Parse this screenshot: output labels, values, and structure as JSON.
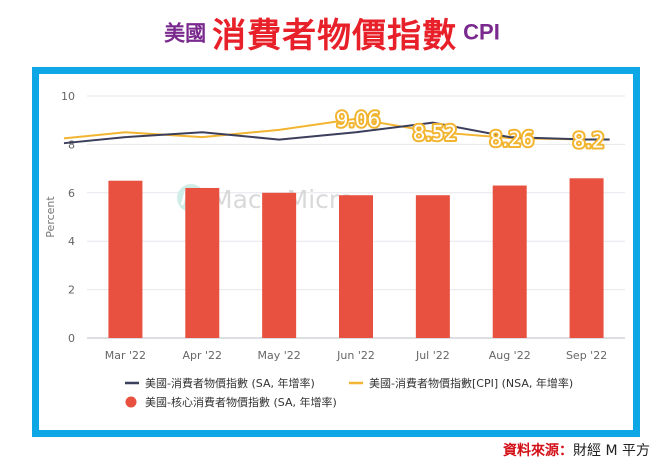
{
  "header": {
    "title_prefix": "美國",
    "title_main": "消費者物價指數",
    "title_suffix": "CPI"
  },
  "watermark": "MacroMicro",
  "source": {
    "label": "資料來源：",
    "value": "財經 M 平方"
  },
  "chart_data": {
    "type": "bar",
    "categories": [
      "Mar '22",
      "Apr '22",
      "May '22",
      "Jun '22",
      "Jul '22",
      "Aug '22",
      "Sep '22"
    ],
    "ylabel": "Percent",
    "ylim": [
      0,
      10
    ],
    "yticks": [
      0,
      2,
      4,
      6,
      8,
      10
    ],
    "grid": true,
    "legend_position": "bottom",
    "series": [
      {
        "name": "美國-消費者物價指數 (SA, 年增率)",
        "type": "line",
        "color": "#3b3f5c",
        "values": [
          8.3,
          8.5,
          8.2,
          8.5,
          8.9,
          8.3,
          8.2
        ]
      },
      {
        "name": "美國-消費者物價指數[CPI] (NSA, 年增率)",
        "type": "line",
        "color": "#f2b531",
        "values": [
          8.5,
          8.3,
          8.6,
          9.06,
          8.52,
          8.26,
          8.2
        ]
      },
      {
        "name": "美國-核心消費者物價指數 (SA, 年增率)",
        "type": "bar",
        "color": "#e8513f",
        "values": [
          6.5,
          6.2,
          6.0,
          5.9,
          5.9,
          6.3,
          6.6
        ]
      }
    ],
    "annotations": [
      {
        "category": "Jun '22",
        "text": "9.06"
      },
      {
        "category": "Jul '22",
        "text": "8.52"
      },
      {
        "category": "Aug '22",
        "text": "8.26"
      },
      {
        "category": "Sep '22",
        "text": "8.2"
      }
    ]
  }
}
